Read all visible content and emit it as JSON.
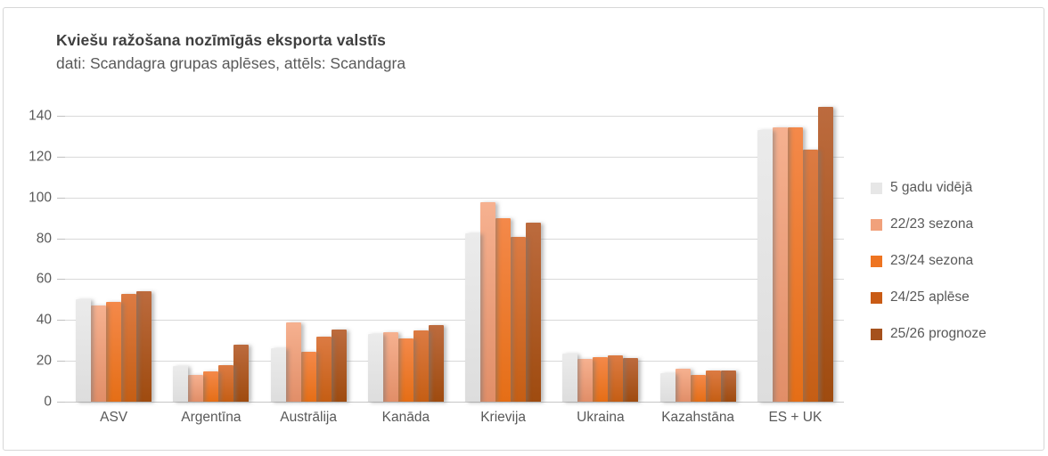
{
  "chart": {
    "title": "Kviešu ražošana nozīmīgās eksporta valstīs",
    "subtitle": "dati: Scandagra grupas aplēses, attēls: Scandagra"
  },
  "chart_data": {
    "type": "bar",
    "title": "Kviešu ražošana nozīmīgās eksporta valstīs",
    "subtitle": "dati: Scandagra grupas aplēses, attēls: Scandagra",
    "categories": [
      "ASV",
      "Argentīna",
      "Austrālija",
      "Kanāda",
      "Krievija",
      "Ukraina",
      "Kazahstāna",
      "ES + UK"
    ],
    "series": [
      {
        "name": "5 gadu vidējā",
        "swatch_color": "#E7E7E7",
        "color_top": "#EBEBEB",
        "color_bottom": "#DDDDDD",
        "values": [
          50,
          17.5,
          26,
          33,
          82.5,
          23.5,
          14,
          133
        ]
      },
      {
        "name": "22/23 sezona",
        "swatch_color": "#F1A17B",
        "color_top": "#F6B190",
        "color_bottom": "#E18E68",
        "values": [
          47,
          13,
          39,
          34,
          97.5,
          21,
          16,
          134.5
        ]
      },
      {
        "name": "23/24 sezona",
        "swatch_color": "#EE7421",
        "color_top": "#F4894A",
        "color_bottom": "#E56E16",
        "values": [
          49,
          15,
          24.5,
          31,
          90,
          22,
          13,
          134.5
        ]
      },
      {
        "name": "24/25 aplēse",
        "swatch_color": "#C95B15",
        "color_top": "#DC7B43",
        "color_bottom": "#C55E14",
        "values": [
          53,
          18,
          32,
          35,
          80.5,
          22.5,
          15.5,
          123.5
        ]
      },
      {
        "name": "25/26 prognoze",
        "swatch_color": "#A5511D",
        "color_top": "#BC6B3E",
        "color_bottom": "#9F4B0F",
        "values": [
          54,
          28,
          35.5,
          37.5,
          87.5,
          21.5,
          15.5,
          144.5
        ]
      }
    ],
    "ylim": [
      0,
      140
    ],
    "yticks": [
      0,
      20,
      40,
      60,
      80,
      100,
      120,
      140
    ],
    "grid": true,
    "legend_position": "right",
    "colors": {
      "gridline": "#D9D9D9",
      "axis_text": "#595959",
      "title_text": "#3F3F3F",
      "border": "#D7D7D7"
    }
  }
}
